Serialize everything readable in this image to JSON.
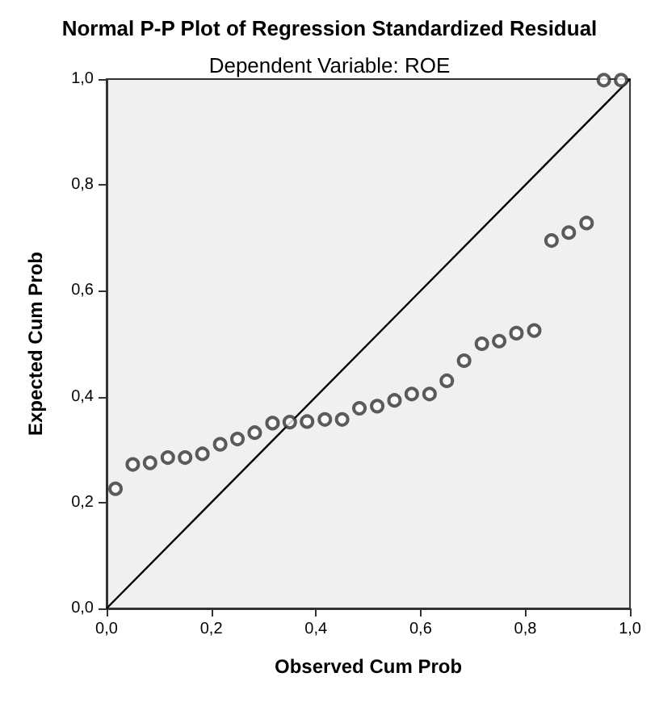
{
  "chart_data": {
    "type": "scatter",
    "title": "Normal P-P Plot of Regression Standardized Residual",
    "subtitle": "Dependent Variable: ROE",
    "xlabel": "Observed Cum Prob",
    "ylabel": "Expected Cum Prob",
    "xlim": [
      0,
      1
    ],
    "ylim": [
      0,
      1
    ],
    "xticks": [
      {
        "value": 0,
        "label": "0,0"
      },
      {
        "value": 0.2,
        "label": "0,2"
      },
      {
        "value": 0.4,
        "label": "0,4"
      },
      {
        "value": 0.6,
        "label": "0,6"
      },
      {
        "value": 0.8,
        "label": "0,8"
      },
      {
        "value": 1,
        "label": "1,0"
      }
    ],
    "yticks": [
      {
        "value": 0,
        "label": "0,0"
      },
      {
        "value": 0.2,
        "label": "0,2"
      },
      {
        "value": 0.4,
        "label": "0,4"
      },
      {
        "value": 0.6,
        "label": "0,6"
      },
      {
        "value": 0.8,
        "label": "0,8"
      },
      {
        "value": 1,
        "label": "1,0"
      }
    ],
    "grid": false,
    "marker": "circle",
    "series": [
      {
        "color": "#333333",
        "x": [
          0.017,
          0.05,
          0.083,
          0.117,
          0.15,
          0.183,
          0.217,
          0.25,
          0.283,
          0.317,
          0.35,
          0.383,
          0.417,
          0.45,
          0.483,
          0.517,
          0.55,
          0.583,
          0.617,
          0.65,
          0.683,
          0.717,
          0.75,
          0.783,
          0.817,
          0.85,
          0.883,
          0.917,
          0.95,
          0.983
        ],
        "values": [
          0.226,
          0.272,
          0.275,
          0.285,
          0.285,
          0.292,
          0.31,
          0.32,
          0.332,
          0.35,
          0.352,
          0.353,
          0.357,
          0.357,
          0.378,
          0.382,
          0.393,
          0.405,
          0.405,
          0.43,
          0.468,
          0.5,
          0.505,
          0.52,
          0.525,
          0.695,
          0.71,
          0.728,
          0.998,
          0.998
        ]
      },
      {
        "type": "line",
        "color": "#000000",
        "x": [
          0,
          1
        ],
        "values": [
          0,
          1
        ],
        "marker": "none",
        "line_style": "solid"
      }
    ]
  }
}
